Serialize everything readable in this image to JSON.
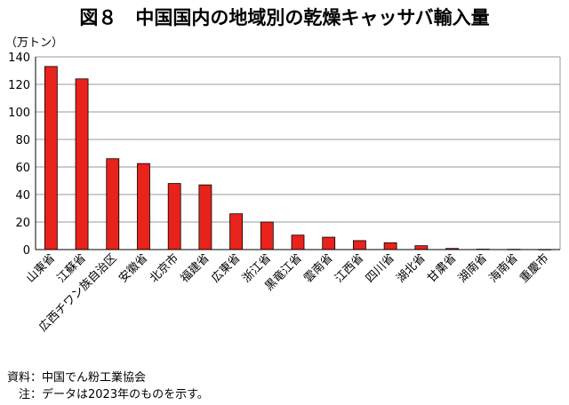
{
  "chart_data": {
    "type": "bar",
    "title": "図８　中国国内の地域別の乾燥キャッサバ輸入量",
    "unit_label": "（万トン）",
    "ylim": [
      0,
      140
    ],
    "yticks": [
      0,
      20,
      40,
      60,
      80,
      100,
      120,
      140
    ],
    "grid": true,
    "bar_color": "#e8231b",
    "categories": [
      "山東省",
      "江蘇省",
      "広西チワン族自治区",
      "安徽省",
      "北京市",
      "福建省",
      "広東省",
      "浙江省",
      "黒竜江省",
      "雲南省",
      "江西省",
      "四川省",
      "湖北省",
      "甘粛省",
      "湖南省",
      "海南省",
      "重慶市"
    ],
    "values": [
      133,
      124,
      66,
      62.5,
      48,
      47,
      26,
      20,
      10.5,
      9,
      6.5,
      5,
      2.8,
      0.8,
      0.3,
      0.2,
      0.1
    ]
  },
  "notes": {
    "source": "資料：中国でん粉工業協会",
    "note": "　注：データは2023年のものを示す。"
  }
}
